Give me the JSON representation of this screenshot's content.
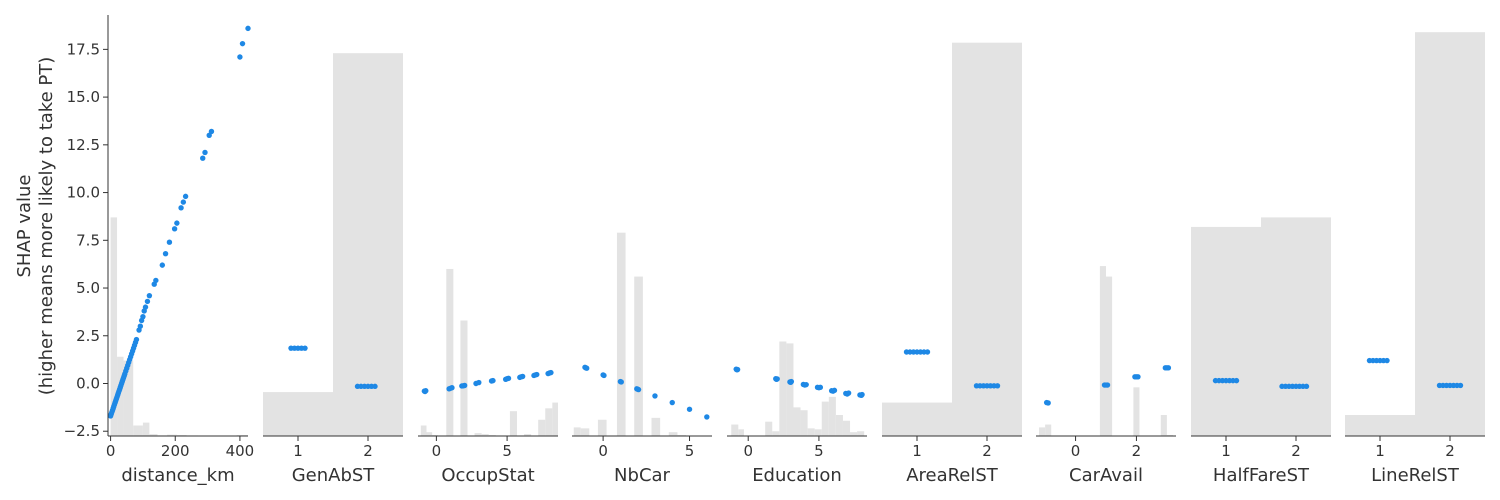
{
  "chart_data": {
    "type": "scatter",
    "ylabel_line1": "SHAP value",
    "ylabel_line2": "(higher means more likely to take PT)",
    "ylim": [
      -2.75,
      19.3
    ],
    "yticks": [
      -2.5,
      0.0,
      2.5,
      5.0,
      7.5,
      10.0,
      12.5,
      15.0,
      17.5
    ],
    "ytick_labels": [
      "−2.5",
      "0.0",
      "2.5",
      "5.0",
      "7.5",
      "10.0",
      "12.5",
      "15.0",
      "17.5"
    ],
    "colors": {
      "point": "#1e88e5",
      "hist": "#e3e3e3",
      "axis": "#333333"
    },
    "panels": [
      {
        "feature": "distance_km",
        "xlim": [
          -8,
          425
        ],
        "xticks": [
          0,
          200,
          400
        ],
        "xtick_labels": [
          "0",
          "200",
          "400"
        ],
        "hist": [
          [
            0,
            20,
            8.7
          ],
          [
            20,
            40,
            1.4
          ],
          [
            40,
            70,
            1.2
          ],
          [
            70,
            100,
            -2.2
          ],
          [
            100,
            120,
            -2.05
          ],
          [
            120,
            145,
            -2.65
          ],
          [
            145,
            175,
            -2.72
          ],
          [
            175,
            205,
            -2.68
          ],
          [
            205,
            235,
            -2.7
          ],
          [
            235,
            270,
            -2.72
          ],
          [
            270,
            300,
            -2.74
          ],
          [
            300,
            330,
            -2.73
          ],
          [
            330,
            360,
            -2.74
          ],
          [
            360,
            390,
            -2.74
          ],
          [
            390,
            425,
            -2.7
          ]
        ],
        "points": [
          [
            0,
            -1.7
          ],
          [
            2,
            -1.6
          ],
          [
            4,
            -1.5
          ],
          [
            6,
            -1.4
          ],
          [
            8,
            -1.3
          ],
          [
            10,
            -1.2
          ],
          [
            12,
            -1.1
          ],
          [
            14,
            -1.0
          ],
          [
            16,
            -0.9
          ],
          [
            18,
            -0.8
          ],
          [
            20,
            -0.7
          ],
          [
            22,
            -0.6
          ],
          [
            24,
            -0.5
          ],
          [
            26,
            -0.4
          ],
          [
            28,
            -0.3
          ],
          [
            30,
            -0.2
          ],
          [
            32,
            -0.1
          ],
          [
            34,
            0.0
          ],
          [
            36,
            0.1
          ],
          [
            38,
            0.2
          ],
          [
            40,
            0.3
          ],
          [
            42,
            0.4
          ],
          [
            44,
            0.5
          ],
          [
            47,
            0.65
          ],
          [
            50,
            0.8
          ],
          [
            53,
            0.95
          ],
          [
            56,
            1.1
          ],
          [
            59,
            1.25
          ],
          [
            62,
            1.4
          ],
          [
            65,
            1.55
          ],
          [
            68,
            1.7
          ],
          [
            71,
            1.85
          ],
          [
            74,
            2.0
          ],
          [
            77,
            2.15
          ],
          [
            80,
            2.3
          ],
          [
            88,
            2.8
          ],
          [
            92,
            3.0
          ],
          [
            96,
            3.3
          ],
          [
            100,
            3.5
          ],
          [
            104,
            3.8
          ],
          [
            108,
            4.0
          ],
          [
            114,
            4.3
          ],
          [
            120,
            4.6
          ],
          [
            135,
            5.2
          ],
          [
            140,
            5.4
          ],
          [
            160,
            6.2
          ],
          [
            170,
            6.8
          ],
          [
            182,
            7.4
          ],
          [
            198,
            8.1
          ],
          [
            205,
            8.4
          ],
          [
            218,
            9.2
          ],
          [
            225,
            9.5
          ],
          [
            232,
            9.8
          ],
          [
            285,
            11.8
          ],
          [
            292,
            12.1
          ],
          [
            305,
            13.0
          ],
          [
            312,
            13.2
          ],
          [
            400,
            17.1
          ],
          [
            408,
            17.8
          ],
          [
            425,
            18.6
          ]
        ]
      },
      {
        "feature": "GenAbST",
        "xlim": [
          0.5,
          2.5
        ],
        "xticks": [
          1,
          2
        ],
        "xtick_labels": [
          "1",
          "2"
        ],
        "hist": [
          [
            0.5,
            1.5,
            -0.45
          ],
          [
            1.5,
            2.5,
            17.3
          ]
        ],
        "points": [
          [
            0.9,
            1.85
          ],
          [
            0.95,
            1.85
          ],
          [
            1.0,
            1.85
          ],
          [
            1.05,
            1.85
          ],
          [
            1.1,
            1.85
          ],
          [
            1.85,
            -0.15
          ],
          [
            1.9,
            -0.15
          ],
          [
            1.95,
            -0.15
          ],
          [
            2.0,
            -0.15
          ],
          [
            2.05,
            -0.15
          ],
          [
            2.1,
            -0.15
          ]
        ]
      },
      {
        "feature": "OccupStat",
        "xlim": [
          -1.3,
          8.6
        ],
        "xticks": [
          0,
          5
        ],
        "xtick_labels": [
          "0",
          "5"
        ],
        "hist": [
          [
            -1.1,
            -0.7,
            -2.2
          ],
          [
            -0.7,
            -0.3,
            -2.55
          ],
          [
            -0.3,
            0.1,
            -2.7
          ],
          [
            0.7,
            1.2,
            6.0
          ],
          [
            1.7,
            2.2,
            3.3
          ],
          [
            2.7,
            3.2,
            -2.6
          ],
          [
            3.2,
            3.7,
            -2.65
          ],
          [
            3.7,
            4.2,
            -2.7
          ],
          [
            5.2,
            5.7,
            -1.45
          ],
          [
            6.2,
            6.7,
            -2.65
          ],
          [
            7.2,
            7.7,
            -1.9
          ],
          [
            7.7,
            8.2,
            -1.3
          ],
          [
            8.2,
            8.6,
            -1.0
          ]
        ],
        "points": [
          [
            -0.85,
            -0.4
          ],
          [
            -0.8,
            -0.42
          ],
          [
            -0.75,
            -0.38
          ],
          [
            0.9,
            -0.28
          ],
          [
            1.0,
            -0.25
          ],
          [
            1.1,
            -0.22
          ],
          [
            1.8,
            -0.13
          ],
          [
            1.9,
            -0.12
          ],
          [
            2.0,
            -0.1
          ],
          [
            2.8,
            0.0
          ],
          [
            3.0,
            0.05
          ],
          [
            3.9,
            0.13
          ],
          [
            4.0,
            0.15
          ],
          [
            4.9,
            0.22
          ],
          [
            5.0,
            0.25
          ],
          [
            5.1,
            0.27
          ],
          [
            5.9,
            0.32
          ],
          [
            6.0,
            0.35
          ],
          [
            6.1,
            0.37
          ],
          [
            6.9,
            0.42
          ],
          [
            7.0,
            0.45
          ],
          [
            7.1,
            0.47
          ],
          [
            7.9,
            0.52
          ],
          [
            8.0,
            0.55
          ],
          [
            8.1,
            0.57
          ]
        ]
      },
      {
        "feature": "NbCar",
        "xlim": [
          -1.8,
          6.3
        ],
        "xticks": [
          0,
          5
        ],
        "xtick_labels": [
          "0",
          "5"
        ],
        "hist": [
          [
            -1.7,
            -1.3,
            -2.3
          ],
          [
            -1.3,
            -0.8,
            -2.35
          ],
          [
            -0.3,
            0.2,
            -1.9
          ],
          [
            0.8,
            1.3,
            7.9
          ],
          [
            1.8,
            2.3,
            5.6
          ],
          [
            2.8,
            3.3,
            -1.8
          ],
          [
            3.8,
            4.3,
            -2.55
          ],
          [
            4.3,
            4.8,
            -2.7
          ]
        ],
        "points": [
          [
            -1.05,
            0.85
          ],
          [
            -1.0,
            0.82
          ],
          [
            -0.95,
            0.8
          ],
          [
            0.0,
            0.45
          ],
          [
            0.05,
            0.42
          ],
          [
            1.0,
            0.1
          ],
          [
            1.05,
            0.08
          ],
          [
            1.95,
            -0.28
          ],
          [
            2.0,
            -0.3
          ],
          [
            2.05,
            -0.32
          ],
          [
            3.0,
            -0.65
          ],
          [
            4.0,
            -1.0
          ],
          [
            5.0,
            -1.35
          ],
          [
            6.0,
            -1.75
          ]
        ]
      },
      {
        "feature": "Education",
        "xlim": [
          -1.5,
          8.4
        ],
        "xticks": [
          0,
          5
        ],
        "xtick_labels": [
          "0",
          "5"
        ],
        "hist": [
          [
            -1.2,
            -0.7,
            -2.15
          ],
          [
            -0.7,
            -0.3,
            -2.4
          ],
          [
            1.2,
            1.7,
            -2.0
          ],
          [
            1.7,
            2.2,
            -2.5
          ],
          [
            2.2,
            2.7,
            2.2
          ],
          [
            2.7,
            3.2,
            2.1
          ],
          [
            3.2,
            3.7,
            -1.25
          ],
          [
            3.7,
            4.2,
            -1.4
          ],
          [
            4.2,
            4.7,
            -2.35
          ],
          [
            4.7,
            5.2,
            -2.4
          ],
          [
            5.2,
            5.7,
            -0.95
          ],
          [
            5.7,
            6.2,
            -0.7
          ],
          [
            6.2,
            6.7,
            -1.65
          ],
          [
            6.7,
            7.2,
            -1.95
          ],
          [
            7.2,
            7.7,
            -2.55
          ],
          [
            7.7,
            8.2,
            -2.5
          ]
        ],
        "points": [
          [
            -0.85,
            0.75
          ],
          [
            -0.8,
            0.72
          ],
          [
            -0.75,
            0.73
          ],
          [
            1.95,
            0.25
          ],
          [
            2.0,
            0.22
          ],
          [
            2.05,
            0.24
          ],
          [
            2.95,
            0.08
          ],
          [
            3.0,
            0.06
          ],
          [
            3.05,
            0.1
          ],
          [
            3.9,
            -0.05
          ],
          [
            4.0,
            -0.08
          ],
          [
            4.1,
            -0.06
          ],
          [
            4.9,
            -0.2
          ],
          [
            5.0,
            -0.22
          ],
          [
            5.1,
            -0.2
          ],
          [
            5.9,
            -0.38
          ],
          [
            6.0,
            -0.4
          ],
          [
            6.1,
            -0.36
          ],
          [
            6.9,
            -0.52
          ],
          [
            7.0,
            -0.55
          ],
          [
            7.1,
            -0.5
          ],
          [
            7.9,
            -0.6
          ],
          [
            8.0,
            -0.62
          ],
          [
            8.05,
            -0.58
          ]
        ]
      },
      {
        "feature": "AreaRelST",
        "xlim": [
          0.5,
          2.5
        ],
        "xticks": [
          1,
          2
        ],
        "xtick_labels": [
          "1",
          "2"
        ],
        "hist": [
          [
            0.5,
            1.5,
            -1.0
          ],
          [
            1.5,
            2.5,
            17.85
          ]
        ],
        "points": [
          [
            0.85,
            1.65
          ],
          [
            0.9,
            1.65
          ],
          [
            0.95,
            1.65
          ],
          [
            1.0,
            1.65
          ],
          [
            1.05,
            1.65
          ],
          [
            1.1,
            1.65
          ],
          [
            1.15,
            1.65
          ],
          [
            1.85,
            -0.12
          ],
          [
            1.9,
            -0.12
          ],
          [
            1.95,
            -0.12
          ],
          [
            2.0,
            -0.12
          ],
          [
            2.05,
            -0.12
          ],
          [
            2.1,
            -0.12
          ],
          [
            2.15,
            -0.12
          ]
        ]
      },
      {
        "feature": "CarAvail",
        "xlim": [
          -1.3,
          3.3
        ],
        "xticks": [
          0,
          2
        ],
        "xtick_labels": [
          "0",
          "2"
        ],
        "hist": [
          [
            -1.2,
            -1.0,
            -2.3
          ],
          [
            -1.0,
            -0.8,
            -2.15
          ],
          [
            0.8,
            1.0,
            6.15
          ],
          [
            1.0,
            1.2,
            5.6
          ],
          [
            1.9,
            2.1,
            -0.2
          ],
          [
            2.8,
            3.0,
            -1.65
          ],
          [
            3.0,
            3.2,
            -2.7
          ]
        ],
        "points": [
          [
            -0.95,
            -1.0
          ],
          [
            -0.9,
            -1.02
          ],
          [
            0.95,
            -0.08
          ],
          [
            1.0,
            -0.08
          ],
          [
            1.05,
            -0.08
          ],
          [
            1.95,
            0.35
          ],
          [
            2.0,
            0.35
          ],
          [
            2.05,
            0.35
          ],
          [
            2.95,
            0.82
          ],
          [
            3.0,
            0.82
          ],
          [
            3.05,
            0.82
          ]
        ]
      },
      {
        "feature": "HalfFareST",
        "xlim": [
          0.5,
          2.5
        ],
        "xticks": [
          1,
          2
        ],
        "xtick_labels": [
          "1",
          "2"
        ],
        "hist": [
          [
            0.5,
            1.5,
            8.2
          ],
          [
            1.5,
            2.5,
            8.7
          ]
        ],
        "points": [
          [
            0.85,
            0.15
          ],
          [
            0.9,
            0.15
          ],
          [
            0.95,
            0.15
          ],
          [
            1.0,
            0.15
          ],
          [
            1.05,
            0.15
          ],
          [
            1.1,
            0.15
          ],
          [
            1.15,
            0.15
          ],
          [
            1.8,
            -0.15
          ],
          [
            1.85,
            -0.15
          ],
          [
            1.9,
            -0.15
          ],
          [
            1.95,
            -0.15
          ],
          [
            2.0,
            -0.15
          ],
          [
            2.05,
            -0.15
          ],
          [
            2.1,
            -0.15
          ],
          [
            2.15,
            -0.15
          ]
        ]
      },
      {
        "feature": "LineRelST",
        "xlim": [
          0.5,
          2.5
        ],
        "xticks": [
          1,
          2
        ],
        "xtick_labels": [
          "1",
          "2"
        ],
        "hist": [
          [
            0.5,
            1.5,
            -1.65
          ],
          [
            1.5,
            2.5,
            18.4
          ]
        ],
        "points": [
          [
            0.85,
            1.2
          ],
          [
            0.9,
            1.2
          ],
          [
            0.95,
            1.2
          ],
          [
            1.0,
            1.2
          ],
          [
            1.05,
            1.2
          ],
          [
            1.1,
            1.2
          ],
          [
            1.85,
            -0.1
          ],
          [
            1.9,
            -0.1
          ],
          [
            1.95,
            -0.1
          ],
          [
            2.0,
            -0.1
          ],
          [
            2.05,
            -0.1
          ],
          [
            2.1,
            -0.1
          ],
          [
            2.15,
            -0.1
          ]
        ]
      }
    ]
  }
}
